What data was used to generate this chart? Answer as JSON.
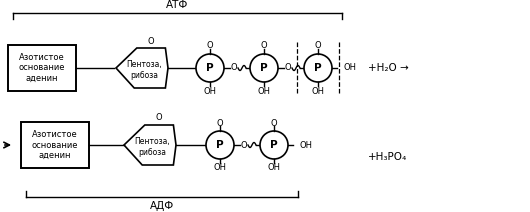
{
  "bg_color": "#ffffff",
  "line_color": "#000000",
  "box_fill": "#ffffff",
  "pentagon_fill": "#ffffff",
  "circle_fill": "#ffffff",
  "text_atf": "АТФ",
  "text_adf": "АДФ",
  "text_nitrogen_base": "Азотистое\nоснование\nаденин",
  "text_pentose1": "Пентоза,\nрибоза",
  "text_pentose2": "Пентоза,\nрибоза",
  "text_p": "P",
  "text_o": "O",
  "text_oh": "OH",
  "text_h2o": "+H₂O →",
  "text_h3po4": "+H₃PO₄",
  "fig_width": 5.3,
  "fig_height": 2.12,
  "dpi": 100
}
